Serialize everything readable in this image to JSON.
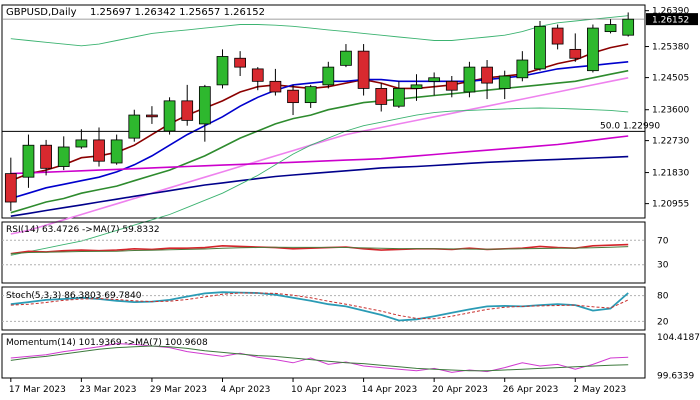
{
  "main": {
    "symbol": "GBPUSD,Daily",
    "ohlc": "1.25697 1.26342 1.25657 1.26152",
    "price_axis": [
      "1.26390",
      "1.25380",
      "1.24505",
      "1.23600",
      "1.22730",
      "1.21830",
      "1.20955"
    ],
    "price_range": [
      1.2055,
      1.2655
    ],
    "current_price": "1.26152",
    "fib_label": "50.0 1.22990",
    "fib_level": 1.2299,
    "candles": [
      [
        1.218,
        1.2225,
        1.2075,
        1.21
      ],
      [
        1.217,
        1.229,
        1.214,
        1.226
      ],
      [
        1.226,
        1.2275,
        1.2175,
        1.2195
      ],
      [
        1.22,
        1.2285,
        1.219,
        1.2255
      ],
      [
        1.2255,
        1.2305,
        1.225,
        1.2275
      ],
      [
        1.2275,
        1.231,
        1.22,
        1.2215
      ],
      [
        1.221,
        1.229,
        1.2205,
        1.2275
      ],
      [
        1.228,
        1.236,
        1.227,
        1.2345
      ],
      [
        1.2345,
        1.237,
        1.232,
        1.234
      ],
      [
        1.23,
        1.2395,
        1.229,
        1.2385
      ],
      [
        1.2385,
        1.243,
        1.2315,
        1.233
      ],
      [
        1.232,
        1.243,
        1.227,
        1.2425
      ],
      [
        1.243,
        1.253,
        1.242,
        1.251
      ],
      [
        1.2505,
        1.2525,
        1.2455,
        1.248
      ],
      [
        1.2475,
        1.248,
        1.2415,
        1.244
      ],
      [
        1.244,
        1.2475,
        1.24,
        1.241
      ],
      [
        1.2415,
        1.243,
        1.2345,
        1.238
      ],
      [
        1.238,
        1.243,
        1.2365,
        1.2425
      ],
      [
        1.243,
        1.2495,
        1.242,
        1.248
      ],
      [
        1.2485,
        1.2545,
        1.248,
        1.2525
      ],
      [
        1.2525,
        1.2545,
        1.24,
        1.242
      ],
      [
        1.242,
        1.2435,
        1.2355,
        1.2375
      ],
      [
        1.237,
        1.244,
        1.2365,
        1.242
      ],
      [
        1.242,
        1.246,
        1.2385,
        1.243
      ],
      [
        1.244,
        1.2465,
        1.24,
        1.245
      ],
      [
        1.244,
        1.2455,
        1.2395,
        1.2415
      ],
      [
        1.241,
        1.2495,
        1.2395,
        1.248
      ],
      [
        1.248,
        1.25,
        1.239,
        1.2435
      ],
      [
        1.242,
        1.247,
        1.239,
        1.2455
      ],
      [
        1.245,
        1.2525,
        1.244,
        1.25
      ],
      [
        1.2475,
        1.261,
        1.247,
        1.2595
      ],
      [
        1.259,
        1.26,
        1.253,
        1.2545
      ],
      [
        1.253,
        1.2575,
        1.2495,
        1.2505
      ],
      [
        1.247,
        1.26,
        1.2465,
        1.259
      ],
      [
        1.258,
        1.2615,
        1.2575,
        1.26
      ],
      [
        1.257,
        1.2634,
        1.2566,
        1.2615
      ]
    ],
    "ma_lines": [
      {
        "color": "#8b0000",
        "values": [
          1.216,
          1.218,
          1.219,
          1.2205,
          1.2225,
          1.223,
          1.224,
          1.226,
          1.229,
          1.232,
          1.2345,
          1.2365,
          1.2385,
          1.241,
          1.2425,
          1.243,
          1.2425,
          1.242,
          1.2425,
          1.2435,
          1.2445,
          1.2435,
          1.242,
          1.242,
          1.2425,
          1.243,
          1.244,
          1.245,
          1.2455,
          1.246,
          1.2475,
          1.249,
          1.25,
          1.252,
          1.2535,
          1.2545
        ]
      },
      {
        "color": "#0000cd",
        "values": [
          1.211,
          1.2125,
          1.214,
          1.215,
          1.216,
          1.217,
          1.2185,
          1.2205,
          1.223,
          1.226,
          1.229,
          1.2315,
          1.234,
          1.237,
          1.2395,
          1.2415,
          1.243,
          1.2435,
          1.244,
          1.244,
          1.2445,
          1.2445,
          1.244,
          1.244,
          1.244,
          1.244,
          1.244,
          1.2445,
          1.245,
          1.2455,
          1.2465,
          1.2475,
          1.248,
          1.2485,
          1.249,
          1.2495
        ]
      },
      {
        "color": "#2e8b2e",
        "values": [
          1.207,
          1.2085,
          1.21,
          1.211,
          1.2125,
          1.2135,
          1.2145,
          1.216,
          1.2175,
          1.219,
          1.221,
          1.223,
          1.2255,
          1.228,
          1.23,
          1.232,
          1.2335,
          1.2345,
          1.236,
          1.237,
          1.238,
          1.2385,
          1.239,
          1.2395,
          1.24,
          1.2405,
          1.241,
          1.2415,
          1.242,
          1.2425,
          1.243,
          1.2435,
          1.244,
          1.245,
          1.246,
          1.247
        ]
      },
      {
        "color": "#ee82ee",
        "values": [
          1.201,
          1.202,
          1.2035,
          1.205,
          1.2065,
          1.208,
          1.2095,
          1.211,
          1.2125,
          1.214,
          1.2155,
          1.217,
          1.2185,
          1.22,
          1.2215,
          1.223,
          1.2245,
          1.226,
          1.2275,
          1.229,
          1.23,
          1.231,
          1.232,
          1.233,
          1.234,
          1.235,
          1.236,
          1.237,
          1.238,
          1.239,
          1.24,
          1.241,
          1.242,
          1.243,
          1.244,
          1.245
        ]
      },
      {
        "color": "#cc00cc",
        "values": [
          1.218,
          1.2182,
          1.2184,
          1.2186,
          1.2188,
          1.219,
          1.2192,
          1.2194,
          1.2196,
          1.2198,
          1.22,
          1.2202,
          1.2204,
          1.2206,
          1.2208,
          1.221,
          1.2212,
          1.2214,
          1.2216,
          1.2218,
          1.222,
          1.2222,
          1.2226,
          1.223,
          1.2234,
          1.2238,
          1.2242,
          1.2246,
          1.225,
          1.2254,
          1.2258,
          1.2262,
          1.2268,
          1.2274,
          1.228,
          1.2286
        ]
      },
      {
        "color": "#00008b",
        "values": [
          1.206,
          1.2068,
          1.2076,
          1.2084,
          1.2092,
          1.21,
          1.2108,
          1.2116,
          1.2124,
          1.2132,
          1.214,
          1.2148,
          1.2154,
          1.216,
          1.2166,
          1.2172,
          1.2176,
          1.218,
          1.2184,
          1.2188,
          1.2192,
          1.2196,
          1.2198,
          1.22,
          1.2203,
          1.2206,
          1.2209,
          1.2212,
          1.2214,
          1.2216,
          1.2218,
          1.222,
          1.2222,
          1.2224,
          1.2226,
          1.2228
        ]
      },
      {
        "color": "#3cb371",
        "values": [
          1.256,
          1.2555,
          1.255,
          1.2545,
          1.254,
          1.2545,
          1.2555,
          1.2565,
          1.2575,
          1.258,
          1.2585,
          1.259,
          1.2595,
          1.26,
          1.26,
          1.2598,
          1.2595,
          1.259,
          1.2585,
          1.258,
          1.2575,
          1.257,
          1.2565,
          1.256,
          1.2555,
          1.2555,
          1.256,
          1.2565,
          1.257,
          1.258,
          1.2595,
          1.2605,
          1.261,
          1.2615,
          1.262,
          1.2625
        ]
      },
      {
        "color": "#3cb371",
        "values": [
          1.195,
          1.196,
          1.197,
          1.198,
          1.199,
          1.2005,
          1.202,
          1.2035,
          1.205,
          1.2065,
          1.2085,
          1.2105,
          1.2125,
          1.215,
          1.2175,
          1.2205,
          1.2235,
          1.226,
          1.228,
          1.23,
          1.2315,
          1.2325,
          1.2335,
          1.2345,
          1.2352,
          1.2356,
          1.2358,
          1.236,
          1.2362,
          1.2364,
          1.2365,
          1.2364,
          1.2362,
          1.236,
          1.2358,
          1.2354
        ]
      }
    ]
  },
  "rsi": {
    "label": "RSI(14) 63.4726 ->MA(7) 59.8332",
    "levels": [
      "70",
      "30"
    ],
    "level_values": [
      70,
      30
    ],
    "range": [
      0,
      100
    ],
    "values": [
      48,
      52,
      51,
      53,
      54,
      53,
      54,
      56,
      55,
      57,
      57,
      58,
      61,
      60,
      59,
      58,
      56,
      57,
      58,
      59,
      56,
      54,
      55,
      56,
      56,
      55,
      57,
      55,
      56,
      57,
      60,
      58,
      57,
      61,
      62,
      63
    ]
  },
  "stoch": {
    "label": "Stoch(5,3,3) 86.3803 69.7840",
    "levels": [
      "80",
      "20"
    ],
    "level_values": [
      80,
      20
    ],
    "range": [
      0,
      100
    ],
    "main": [
      60,
      65,
      70,
      72,
      75,
      72,
      68,
      65,
      66,
      70,
      78,
      85,
      88,
      87,
      86,
      82,
      75,
      68,
      60,
      55,
      45,
      35,
      22,
      25,
      32,
      40,
      48,
      55,
      56,
      55,
      58,
      60,
      58,
      45,
      50,
      86
    ],
    "signal": [
      58,
      60,
      64,
      69,
      72,
      73,
      71,
      68,
      66,
      67,
      71,
      77,
      83,
      86,
      86,
      85,
      81,
      75,
      67,
      60,
      52,
      44,
      34,
      27,
      26,
      32,
      40,
      48,
      53,
      55,
      56,
      57,
      58,
      54,
      51,
      70
    ]
  },
  "momentum": {
    "label": "Momentum(14) 101.9369 ->MA(7) 100.9608",
    "axis": [
      "104.4187",
      "99.6339"
    ],
    "range": [
      99.3,
      104.8
    ],
    "values": [
      101.8,
      102.0,
      102.2,
      102.6,
      102.9,
      103.2,
      103.6,
      103.5,
      103.3,
      103.1,
      102.6,
      102.3,
      102.0,
      102.4,
      101.9,
      101.6,
      101.2,
      101.8,
      101.0,
      101.3,
      100.8,
      100.6,
      100.4,
      100.2,
      100.5,
      100.0,
      100.3,
      100.1,
      100.6,
      101.2,
      100.8,
      101.0,
      100.4,
      101.0,
      101.8,
      101.9
    ],
    "signal": [
      101.5,
      101.8,
      102.0,
      102.3,
      102.6,
      102.9,
      103.1,
      103.2,
      103.3,
      103.2,
      103.0,
      102.7,
      102.5,
      102.3,
      102.1,
      102.0,
      101.8,
      101.6,
      101.4,
      101.2,
      101.1,
      100.9,
      100.7,
      100.5,
      100.4,
      100.3,
      100.2,
      100.2,
      100.3,
      100.4,
      100.5,
      100.6,
      100.7,
      100.8,
      100.9,
      100.96
    ]
  },
  "x_axis": {
    "labels": [
      "17 Mar 2023",
      "23 Mar 2023",
      "29 Mar 2023",
      "4 Apr 2023",
      "10 Apr 2023",
      "14 Apr 2023",
      "20 Apr 2023",
      "26 Apr 2023",
      "2 May 2023"
    ],
    "label_bar_index": [
      0,
      4,
      8,
      12,
      16,
      20,
      24,
      28,
      32
    ]
  },
  "colors": {
    "bull": "#2eb82e",
    "bear": "#d8292f",
    "rsi": "#d4242a",
    "rsi_ma": "#4d7a3d",
    "stoch_main": "#2a9bb5",
    "stoch_signal": "#c8302e",
    "momentum": "#d03ad0",
    "momentum_ma": "#3d7a3d",
    "grid": "#b0b0b0"
  }
}
